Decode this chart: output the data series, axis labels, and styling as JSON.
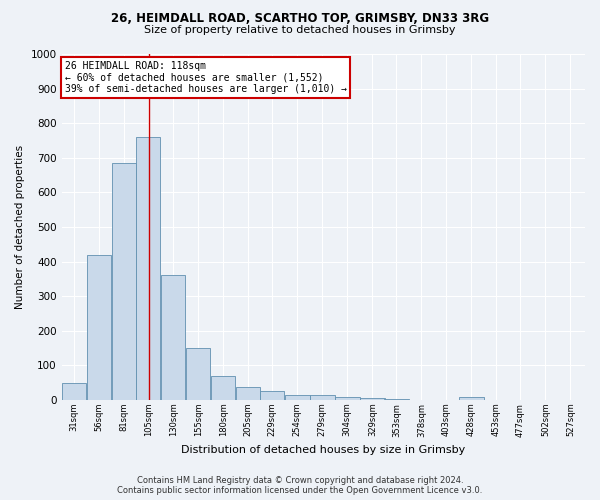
{
  "title1": "26, HEIMDALL ROAD, SCARTHO TOP, GRIMSBY, DN33 3RG",
  "title2": "Size of property relative to detached houses in Grimsby",
  "xlabel": "Distribution of detached houses by size in Grimsby",
  "ylabel": "Number of detached properties",
  "footer": "Contains HM Land Registry data © Crown copyright and database right 2024.\nContains public sector information licensed under the Open Government Licence v3.0.",
  "bin_labels": [
    "31sqm",
    "56sqm",
    "81sqm",
    "105sqm",
    "130sqm",
    "155sqm",
    "180sqm",
    "205sqm",
    "229sqm",
    "254sqm",
    "279sqm",
    "304sqm",
    "329sqm",
    "353sqm",
    "378sqm",
    "403sqm",
    "428sqm",
    "453sqm",
    "477sqm",
    "502sqm",
    "527sqm"
  ],
  "bar_heights": [
    50,
    420,
    685,
    760,
    360,
    150,
    70,
    36,
    25,
    15,
    13,
    8,
    5,
    3,
    1,
    0,
    8,
    0,
    0,
    0,
    0
  ],
  "bar_color": "#c9d9ea",
  "bar_edge_color": "#6090b0",
  "ylim": [
    0,
    1000
  ],
  "yticks": [
    0,
    100,
    200,
    300,
    400,
    500,
    600,
    700,
    800,
    900,
    1000
  ],
  "bin_width": 25,
  "bin_starts": [
    31,
    56,
    81,
    105,
    130,
    155,
    180,
    205,
    229,
    254,
    279,
    304,
    329,
    353,
    378,
    403,
    428,
    453,
    477,
    502,
    527
  ],
  "vline_x": 118,
  "vline_color": "#cc0000",
  "annotation_text": "26 HEIMDALL ROAD: 118sqm\n← 60% of detached houses are smaller (1,552)\n39% of semi-detached houses are larger (1,010) →",
  "annotation_box_color": "#ffffff",
  "annotation_box_edge": "#cc0000",
  "background_color": "#eef2f7"
}
